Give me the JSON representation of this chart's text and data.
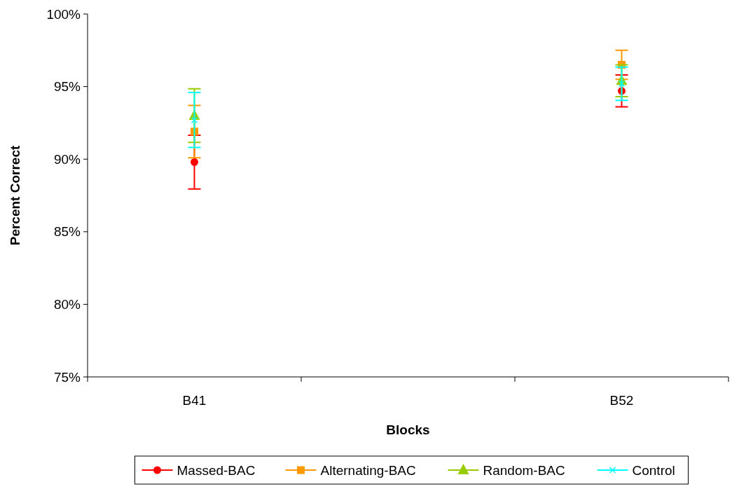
{
  "chart_data": {
    "type": "scatter",
    "xlabel": "Blocks",
    "ylabel": "Percent Correct",
    "categories": [
      "B41",
      null,
      "B52"
    ],
    "ylim": [
      75,
      100
    ],
    "yticks": [
      {
        "value": 75,
        "label": "75%"
      },
      {
        "value": 80,
        "label": "80%"
      },
      {
        "value": 85,
        "label": "85%"
      },
      {
        "value": 90,
        "label": "90%"
      },
      {
        "value": 95,
        "label": "95%"
      },
      {
        "value": 100,
        "label": "100%"
      }
    ],
    "legend": "bottom",
    "grid": false,
    "series": [
      {
        "name": "Massed-BAC",
        "color": "#ff0000",
        "marker": "circle",
        "values": [
          89.8,
          null,
          94.7
        ],
        "errors": [
          1.85,
          null,
          1.1
        ]
      },
      {
        "name": "Alternating-BAC",
        "color": "#ff9900",
        "marker": "square",
        "values": [
          91.9,
          null,
          96.5
        ],
        "errors": [
          1.8,
          null,
          1.0
        ]
      },
      {
        "name": "Random-BAC",
        "color": "#99cc00",
        "marker": "triangle",
        "values": [
          93.0,
          null,
          95.4
        ],
        "errors": [
          1.85,
          null,
          1.1
        ]
      },
      {
        "name": "Control",
        "color": "#00ffff",
        "marker": "cross",
        "values": [
          92.7,
          null,
          95.2
        ],
        "errors": [
          1.9,
          null,
          1.15
        ]
      }
    ]
  }
}
